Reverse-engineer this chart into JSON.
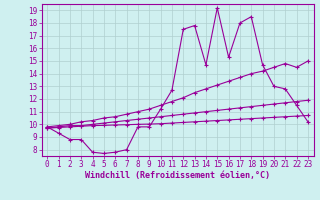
{
  "xlabel": "Windchill (Refroidissement éolien,°C)",
  "bg_color": "#cff0f0",
  "line_color": "#990099",
  "grid_color": "#b0d0d0",
  "xlim": [
    -0.5,
    23.5
  ],
  "ylim": [
    7.5,
    19.5
  ],
  "xticks": [
    0,
    1,
    2,
    3,
    4,
    5,
    6,
    7,
    8,
    9,
    10,
    11,
    12,
    13,
    14,
    15,
    16,
    17,
    18,
    19,
    20,
    21,
    22,
    23
  ],
  "yticks": [
    8,
    9,
    10,
    11,
    12,
    13,
    14,
    15,
    16,
    17,
    18,
    19
  ],
  "line1_x": [
    0,
    1,
    2,
    3,
    4,
    5,
    6,
    7,
    8,
    9,
    10,
    11,
    12,
    13,
    14,
    15,
    16,
    17,
    18,
    19,
    20,
    21,
    22,
    23
  ],
  "line1_y": [
    9.8,
    9.3,
    8.8,
    8.8,
    7.8,
    7.7,
    7.8,
    8.0,
    9.8,
    9.8,
    11.2,
    12.7,
    17.5,
    17.8,
    14.7,
    19.2,
    15.3,
    18.0,
    18.5,
    14.7,
    13.0,
    12.8,
    11.5,
    10.2
  ],
  "line2_x": [
    0,
    1,
    2,
    3,
    4,
    5,
    6,
    7,
    8,
    9,
    10,
    11,
    12,
    13,
    14,
    15,
    16,
    17,
    18,
    19,
    20,
    21,
    22,
    23
  ],
  "line2_y": [
    9.8,
    9.9,
    10.0,
    10.2,
    10.3,
    10.5,
    10.6,
    10.8,
    11.0,
    11.2,
    11.5,
    11.8,
    12.1,
    12.5,
    12.8,
    13.1,
    13.4,
    13.7,
    14.0,
    14.2,
    14.5,
    14.8,
    14.5,
    15.0
  ],
  "line3_x": [
    0,
    1,
    2,
    3,
    4,
    5,
    6,
    7,
    8,
    9,
    10,
    11,
    12,
    13,
    14,
    15,
    16,
    17,
    18,
    19,
    20,
    21,
    22,
    23
  ],
  "line3_y": [
    9.7,
    9.8,
    9.9,
    9.9,
    10.0,
    10.1,
    10.2,
    10.3,
    10.4,
    10.5,
    10.6,
    10.7,
    10.8,
    10.9,
    11.0,
    11.1,
    11.2,
    11.3,
    11.4,
    11.5,
    11.6,
    11.7,
    11.8,
    11.9
  ],
  "line4_x": [
    0,
    1,
    2,
    3,
    4,
    5,
    6,
    7,
    8,
    9,
    10,
    11,
    12,
    13,
    14,
    15,
    16,
    17,
    18,
    19,
    20,
    21,
    22,
    23
  ],
  "line4_y": [
    9.7,
    9.75,
    9.8,
    9.85,
    9.9,
    9.92,
    9.95,
    9.97,
    10.0,
    10.02,
    10.05,
    10.1,
    10.15,
    10.2,
    10.25,
    10.3,
    10.35,
    10.4,
    10.45,
    10.5,
    10.55,
    10.6,
    10.65,
    10.7
  ],
  "marker": "+",
  "markersize": 3,
  "linewidth": 0.8,
  "tick_fontsize": 5.5,
  "xlabel_fontsize": 6.0
}
